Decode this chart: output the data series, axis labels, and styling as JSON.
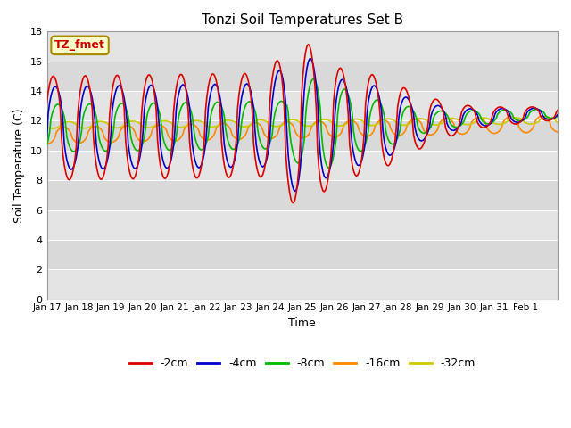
{
  "title": "Tonzi Soil Temperatures Set B",
  "xlabel": "Time",
  "ylabel": "Soil Temperature (C)",
  "annotation_text": "TZ_fmet",
  "annotation_color": "#cc0000",
  "annotation_bg": "#ffffcc",
  "annotation_border": "#aa8800",
  "ylim": [
    0,
    18
  ],
  "yticks": [
    0,
    2,
    4,
    6,
    8,
    10,
    12,
    14,
    16,
    18
  ],
  "series_colors": [
    "#dd0000",
    "#0000cc",
    "#00bb00",
    "#ff8800",
    "#cccc00"
  ],
  "series_labels": [
    "-2cm",
    "-4cm",
    "-8cm",
    "-16cm",
    "-32cm"
  ],
  "plot_bg_light": "#e8e8e8",
  "plot_bg_dark": "#d0d0d0",
  "linewidth": 1.2,
  "day_labels": [
    "Jan 17",
    "Jan 18",
    "Jan 19",
    "Jan 20",
    "Jan 21",
    "Jan 22",
    "Jan 23",
    "Jan 24",
    "Jan 25",
    "Jan 26",
    "Jan 27",
    "Jan 28",
    "Jan 29",
    "Jan 30",
    "Jan 31",
    "Feb 1"
  ]
}
